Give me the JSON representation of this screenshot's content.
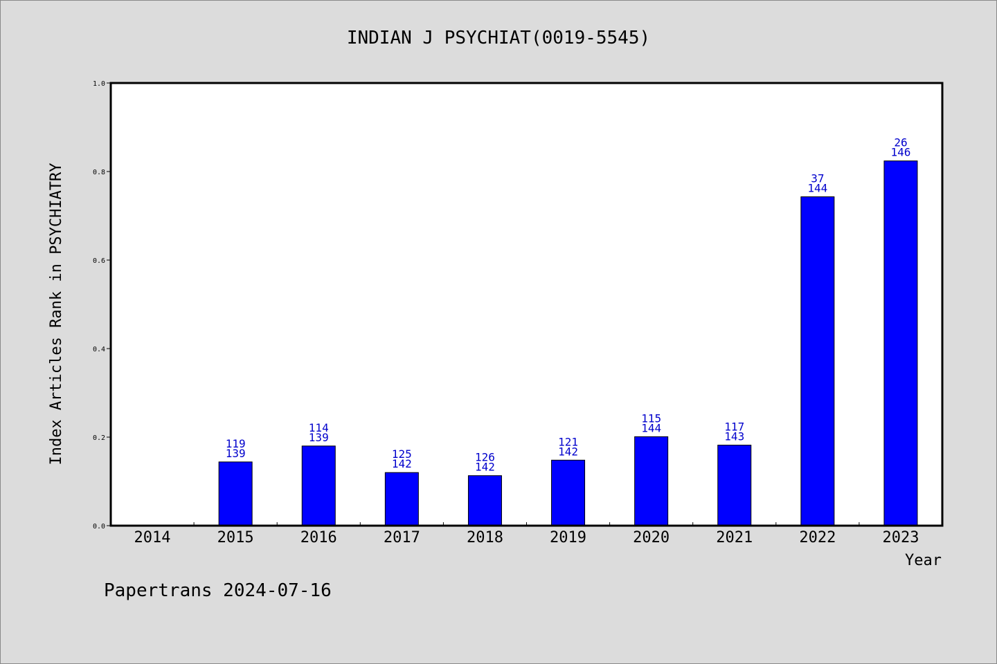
{
  "chart_data": {
    "type": "bar",
    "title": "INDIAN J PSYCHIAT(0019-5545)",
    "xlabel": "Year",
    "ylabel": "Index Articles Rank in PSYCHIATRY",
    "ylim": [
      0,
      1.0
    ],
    "yticks": [
      "0.0",
      "0.2",
      "0.4",
      "0.6",
      "0.8",
      "1.0"
    ],
    "ytick_values": [
      0,
      0.2,
      0.4,
      0.6,
      0.8,
      1.0
    ],
    "categories": [
      "2014",
      "2015",
      "2016",
      "2017",
      "2018",
      "2019",
      "2020",
      "2021",
      "2022",
      "2023"
    ],
    "values": [
      null,
      0.144,
      0.18,
      0.12,
      0.113,
      0.148,
      0.201,
      0.182,
      0.743,
      0.824
    ],
    "rank_labels": [
      "",
      "119",
      "114",
      "125",
      "126",
      "121",
      "115",
      "117",
      "37",
      "26"
    ],
    "total_labels": [
      "",
      "139",
      "139",
      "142",
      "142",
      "142",
      "144",
      "143",
      "144",
      "146"
    ],
    "bar_color": "#0000ff",
    "label_color": "#0000cc",
    "grid": false
  },
  "footer": "Papertrans 2024-07-16"
}
